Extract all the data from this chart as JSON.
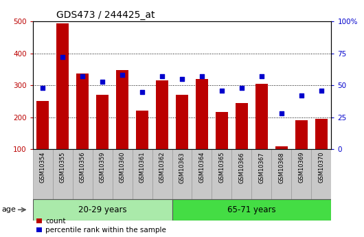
{
  "title": "GDS473 / 244425_at",
  "samples": [
    "GSM10354",
    "GSM10355",
    "GSM10356",
    "GSM10359",
    "GSM10360",
    "GSM10361",
    "GSM10362",
    "GSM10363",
    "GSM10364",
    "GSM10365",
    "GSM10366",
    "GSM10367",
    "GSM10368",
    "GSM10369",
    "GSM10370"
  ],
  "counts": [
    250,
    493,
    337,
    270,
    347,
    220,
    315,
    270,
    320,
    217,
    245,
    305,
    110,
    190,
    195
  ],
  "percentile_ranks": [
    48,
    72,
    57,
    53,
    58,
    45,
    57,
    55,
    57,
    46,
    48,
    57,
    28,
    42,
    46
  ],
  "group1_label": "20-29 years",
  "group1_count": 7,
  "group2_label": "65-71 years",
  "group2_count": 8,
  "age_label": "age",
  "bar_color": "#bb0000",
  "dot_color": "#0000cc",
  "bg_plot": "#ffffff",
  "bg_xtick": "#c8c8c8",
  "bg_group1": "#aaeaaa",
  "bg_group2": "#44dd44",
  "ylim_left": [
    100,
    500
  ],
  "ylim_right": [
    0,
    100
  ],
  "yticks_left": [
    100,
    200,
    300,
    400,
    500
  ],
  "yticks_right": [
    0,
    25,
    50,
    75,
    100
  ],
  "yticklabels_right": [
    "0",
    "25",
    "50",
    "75",
    "100%"
  ],
  "legend_count": "count",
  "legend_pct": "percentile rank within the sample",
  "title_fontsize": 10,
  "tick_fontsize": 7.5,
  "label_fontsize": 8
}
